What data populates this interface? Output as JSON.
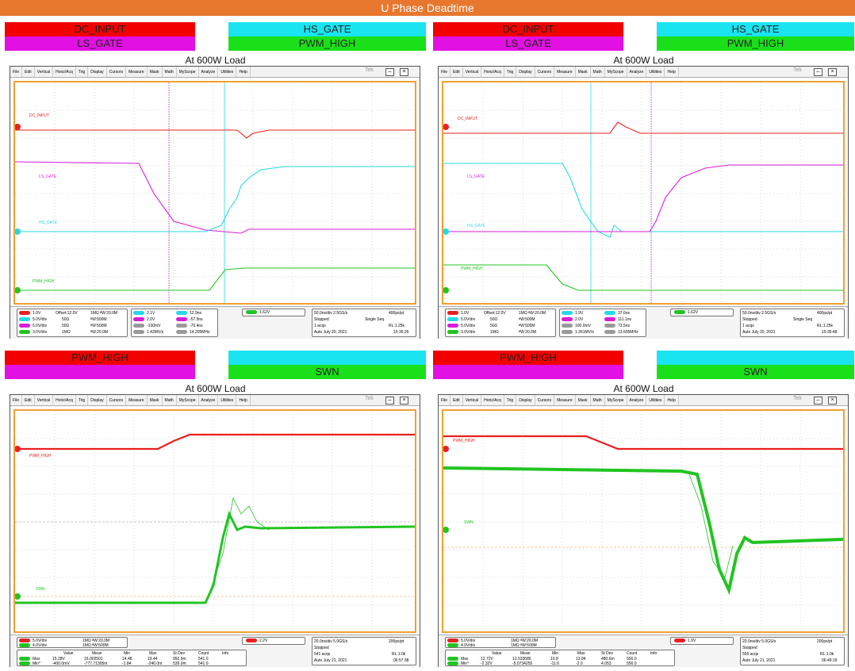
{
  "banner": "U Phase Deadtime",
  "menu": [
    "File",
    "Edit",
    "Vertical",
    "Horiz/Acq",
    "Trig",
    "Display",
    "Cursors",
    "Measure",
    "Mask",
    "Math",
    "MyScope",
    "Analyze",
    "Utilities",
    "Help"
  ],
  "tek_label": "Tek",
  "load_label": "At 600W Load",
  "q1": {
    "legend": [
      "DC_INPUT",
      "HS_GATE",
      "LS_GATE",
      "PWM_HIGH"
    ],
    "traces": [
      "DC_INPUT",
      "LS_GATE",
      "HS_GATE",
      "PWM_HIGH"
    ],
    "ch_rows": [
      "1.0V",
      "5.0V/div",
      "5.0V/div",
      "3.0V/div"
    ],
    "ch_b": [
      "Offset:12.0V",
      "50Ω",
      "50Ω",
      "1MΩ"
    ],
    "ch_c": [
      "1MΩ ᴮW:20.0M",
      "ᴮW:500M",
      "ᴮW:500M",
      "ᴮW:20.0M"
    ],
    "cur_a": [
      "2.1V",
      "2.0V",
      "-100mV",
      "1.42MV/s"
    ],
    "cur_b": [
      "12.9ns",
      "-57.5ns",
      "-70.4ns",
      "14.205MHz"
    ],
    "trig": "1.62V",
    "acq": [
      "50.0ns/div 2.5GS/s",
      "400ps/pt",
      "Stopped",
      "Single Seq",
      "1 acqs",
      "RL:1.25k",
      "Auto   July 20, 2021",
      "15:36:26"
    ]
  },
  "q2": {
    "legend": [
      "DC_INPUT",
      "HS_GATE",
      "LS_GATE",
      "PWM_HIGH"
    ],
    "traces": [
      "DC_INPUT",
      "LS_GATE",
      "HS_GATE",
      "PWM_HIGH"
    ],
    "ch_rows": [
      "1.0V",
      "5.0V/div",
      "5.0V/div",
      "3.0V/div"
    ],
    "ch_b": [
      "Offset:12.0V",
      "50Ω",
      "50Ω",
      "1MΩ"
    ],
    "ch_c": [
      "1MΩ ᴮW:20.0M",
      "ᴮW:500M",
      "ᴮW:500M",
      "ᴮW:20.0M"
    ],
    "cur_a": [
      "1.9V",
      "2.0V",
      "100.0mV",
      "1.361MV/s"
    ],
    "cur_b": [
      "37.6ns",
      "111.1ns",
      "73.5ns",
      "13.605MHz"
    ],
    "trig": "1.62V",
    "acq": [
      "50.0ns/div 2.5GS/s",
      "400ps/pt",
      "Stopped",
      "Single Seq",
      "1 acqs",
      "RL:1.25k",
      "Auto   July 20, 2021",
      "15:35:48"
    ]
  },
  "q3": {
    "legend": [
      "PWM_HIGH",
      "SWN"
    ],
    "traces": [
      "PWM_HIGH",
      "SWN"
    ],
    "ch_rows": [
      "5.0V/div",
      "4.0V/div"
    ],
    "ch_c": [
      "1MΩ ᴮW:20.0M",
      "1MΩ ᴮW:500M"
    ],
    "meas_hdr": [
      "Value",
      "Mean",
      "Min",
      "Max",
      "St Dev",
      "Count",
      "Info"
    ],
    "meas_rows": [
      [
        "Max",
        "15.28V",
        "16.002501",
        "14.48",
        "19.44",
        "992.9m",
        "541.0"
      ],
      [
        "Min*",
        "-400.0mV",
        "-777.71305m",
        "-1.84",
        "-240.0m",
        "539.0m",
        "541.0"
      ]
    ],
    "trig": "2.2V",
    "acq": [
      "20.0ns/div 5.0GS/s",
      "200ps/pt",
      "Stopped",
      "",
      "541 acqs",
      "RL:1.0k",
      "Auto   July 21, 2021",
      "06:57:38"
    ]
  },
  "q4": {
    "legend": [
      "PWM_HIGH",
      "SWN"
    ],
    "traces": [
      "PWM_HIGH",
      "SWN"
    ],
    "ch_rows": [
      "5.0V/div",
      "4.0V/div"
    ],
    "ch_c": [
      "1MΩ ᴮW:20.0M",
      "1MΩ ᴮW:500M"
    ],
    "meas_hdr": [
      "Value",
      "Mean",
      "Min",
      "Max",
      "St Dev",
      "Count",
      "Info"
    ],
    "meas_rows": [
      [
        "Max",
        "12.72V",
        "12.533686",
        "10.8",
        "13.84",
        "480.6m",
        "556.0"
      ],
      [
        "Min*",
        "-2.32V",
        "-5.0734255",
        "-11.6",
        "-2.0",
        "4.053",
        "556.0"
      ]
    ],
    "trig": "1.9V",
    "acq": [
      "20.0ns/div 5.0GS/s",
      "200ps/pt",
      "Stopped",
      "",
      "556 acqs",
      "RL:1.0k",
      "Auto   July 21, 2021",
      "06:49:19"
    ]
  },
  "colors": {
    "ch1": "#e8201f",
    "ch2": "#27d8e8",
    "ch3": "#d81ed8",
    "ch4": "#22c422",
    "orange": "#e8772e"
  }
}
